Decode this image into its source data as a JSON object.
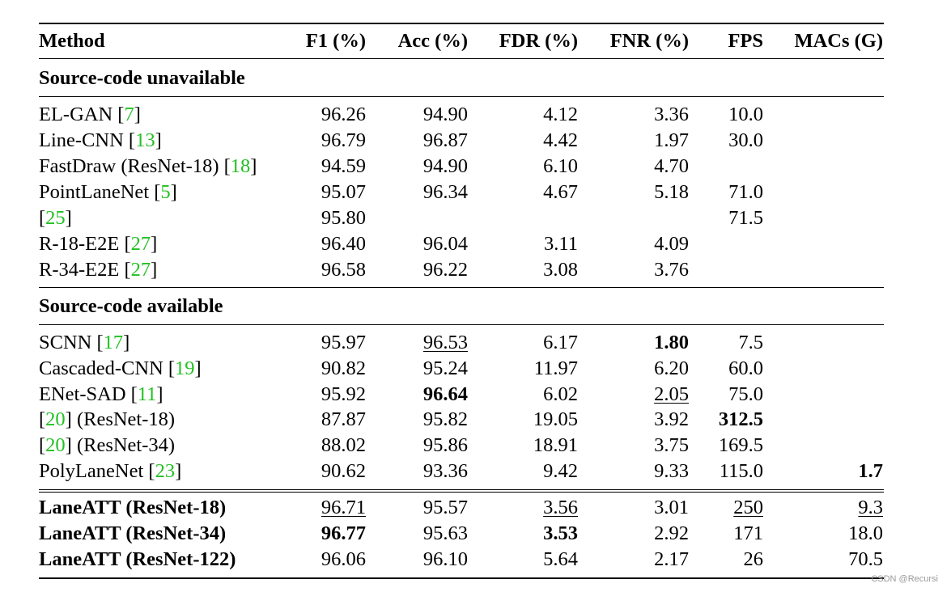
{
  "columns": {
    "method": "Method",
    "f1": "F1 (%)",
    "acc": "Acc (%)",
    "fdr": "FDR (%)",
    "fnr": "FNR (%)",
    "fps": "FPS",
    "macs": "MACs (G)"
  },
  "sections": {
    "unavailable": "Source-code unavailable",
    "available": "Source-code available"
  },
  "rows_unavailable": [
    {
      "pre": "EL-GAN [",
      "ref": "7",
      "post": "]",
      "f1": "96.26",
      "acc": "94.90",
      "fdr": "4.12",
      "fnr": "3.36",
      "fps": "10.0",
      "macs": ""
    },
    {
      "pre": "Line-CNN [",
      "ref": "13",
      "post": "]",
      "f1": "96.79",
      "acc": "96.87",
      "fdr": "4.42",
      "fnr": "1.97",
      "fps": "30.0",
      "macs": ""
    },
    {
      "pre": "FastDraw (ResNet-18) [",
      "ref": "18",
      "post": "]",
      "f1": "94.59",
      "acc": "94.90",
      "fdr": "6.10",
      "fnr": "4.70",
      "fps": "",
      "macs": ""
    },
    {
      "pre": "PointLaneNet [",
      "ref": "5",
      "post": "]",
      "f1": "95.07",
      "acc": "96.34",
      "fdr": "4.67",
      "fnr": "5.18",
      "fps": "71.0",
      "macs": ""
    },
    {
      "pre": "[",
      "ref": "25",
      "post": "]",
      "f1": "95.80",
      "acc": "",
      "fdr": "",
      "fnr": "",
      "fps": "71.5",
      "macs": ""
    },
    {
      "pre": "R-18-E2E [",
      "ref": "27",
      "post": "]",
      "f1": "96.40",
      "acc": "96.04",
      "fdr": "3.11",
      "fnr": "4.09",
      "fps": "",
      "macs": ""
    },
    {
      "pre": "R-34-E2E [",
      "ref": "27",
      "post": "]",
      "f1": "96.58",
      "acc": "96.22",
      "fdr": "3.08",
      "fnr": "3.76",
      "fps": "",
      "macs": ""
    }
  ],
  "rows_available": [
    {
      "pre": "SCNN [",
      "ref": "17",
      "post": "]",
      "f1": "95.97",
      "acc": "96.53",
      "fdr": "6.17",
      "fnr": "1.80",
      "fps": "7.5",
      "macs": ""
    },
    {
      "pre": "Cascaded-CNN [",
      "ref": "19",
      "post": "]",
      "f1": "90.82",
      "acc": "95.24",
      "fdr": "11.97",
      "fnr": "6.20",
      "fps": "60.0",
      "macs": ""
    },
    {
      "pre": "ENet-SAD [",
      "ref": "11",
      "post": "]",
      "f1": "95.92",
      "acc": "96.64",
      "fdr": "6.02",
      "fnr": "2.05",
      "fps": "75.0",
      "macs": ""
    },
    {
      "pre": "[",
      "ref": "20",
      "post": "] (ResNet-18)",
      "f1": "87.87",
      "acc": "95.82",
      "fdr": "19.05",
      "fnr": "3.92",
      "fps": "312.5",
      "macs": ""
    },
    {
      "pre": "[",
      "ref": "20",
      "post": "] (ResNet-34)",
      "f1": "88.02",
      "acc": "95.86",
      "fdr": "18.91",
      "fnr": "3.75",
      "fps": "169.5",
      "macs": ""
    },
    {
      "pre": "PolyLaneNet [",
      "ref": "23",
      "post": "]",
      "f1": "90.62",
      "acc": "93.36",
      "fdr": "9.42",
      "fnr": "9.33",
      "fps": "115.0",
      "macs": "1.7"
    }
  ],
  "rows_ours": [
    {
      "method": "LaneATT (ResNet-18)",
      "f1": "96.71",
      "acc": "95.57",
      "fdr": "3.56",
      "fnr": "3.01",
      "fps": "250",
      "macs": "9.3"
    },
    {
      "method": "LaneATT (ResNet-34)",
      "f1": "96.77",
      "acc": "95.63",
      "fdr": "3.53",
      "fnr": "2.92",
      "fps": "171",
      "macs": "18.0"
    },
    {
      "method": "LaneATT (ResNet-122)",
      "f1": "96.06",
      "acc": "96.10",
      "fdr": "5.64",
      "fnr": "2.17",
      "fps": "26",
      "macs": "70.5"
    }
  ],
  "watermark": "CSDN @Recursi"
}
